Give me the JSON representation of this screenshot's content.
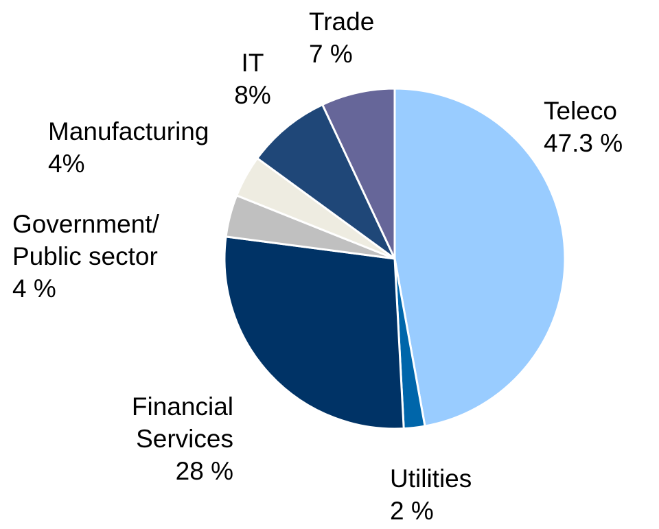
{
  "chart_data": {
    "type": "pie",
    "categories": [
      "Teleco",
      "Utilities",
      "Financial\nServices",
      "Government/\nPublic sector",
      "Manufacturing",
      "IT",
      "Trade"
    ],
    "values": [
      47.3,
      2,
      28,
      4,
      4,
      8,
      7
    ],
    "value_labels": [
      "47.3 %",
      "2 %",
      "28 %",
      "4 %",
      "4%",
      "8%",
      "7 %"
    ],
    "colors": [
      "#99ccff",
      "#0066aa",
      "#003366",
      "#c0c0c0",
      "#eeece1",
      "#1f4778",
      "#666699"
    ]
  }
}
